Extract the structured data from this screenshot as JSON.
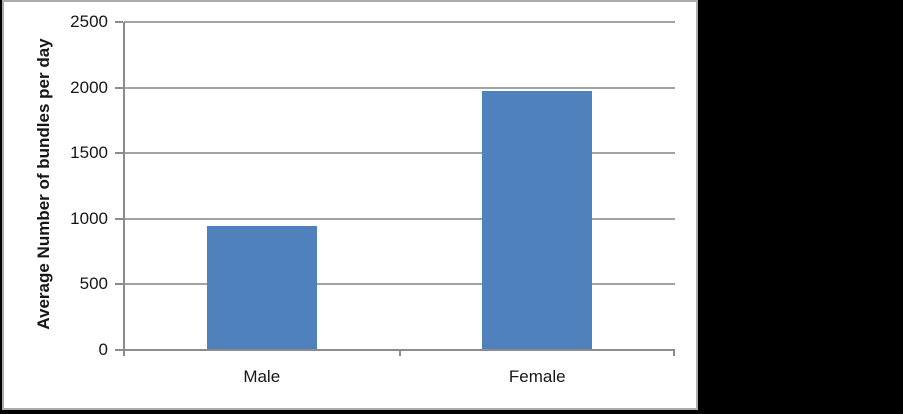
{
  "window": {
    "background_color": "#000000"
  },
  "chart": {
    "canvas_background": "#FFFFFF",
    "border_color": "#ACACAC"
  },
  "chart_data": {
    "type": "bar",
    "categories": [
      "Male",
      "Female"
    ],
    "values": [
      940,
      1970
    ],
    "title": "",
    "xlabel": "",
    "ylabel": "Average Number of bundles per day",
    "ylim": [
      0,
      2500
    ],
    "ytick_step": 500,
    "yticks": [
      0,
      500,
      1000,
      1500,
      2000,
      2500
    ],
    "bar_color": "#4F81BD",
    "gridline_color": "#A3A3A3",
    "axis_color": "#8C8C8C",
    "grid": true,
    "legend_position": "none"
  }
}
